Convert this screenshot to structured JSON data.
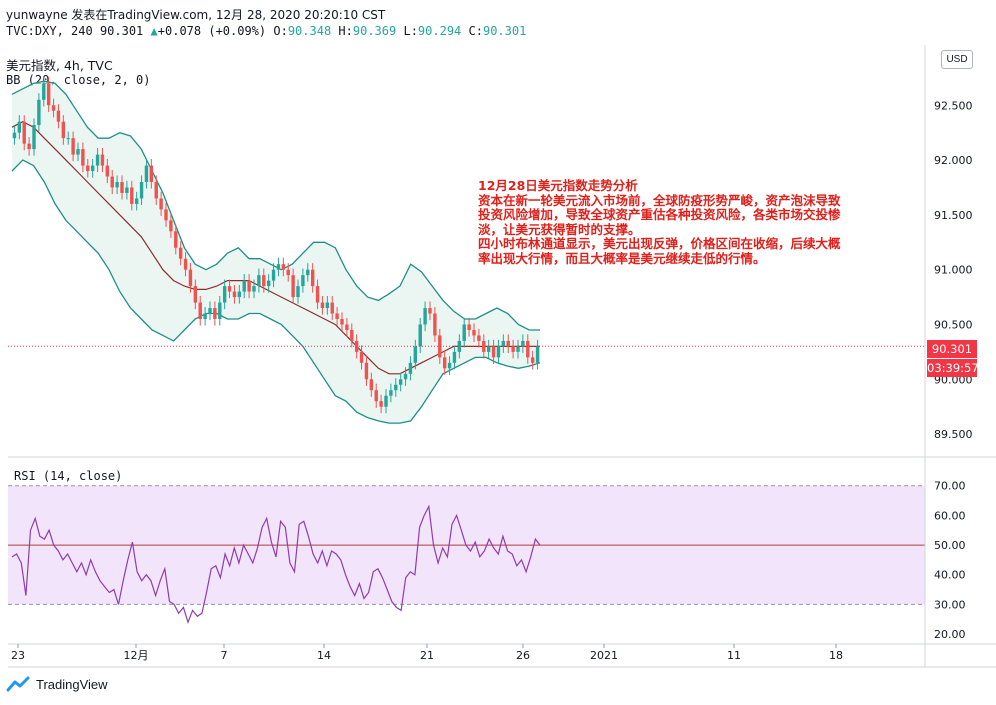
{
  "header": {
    "line1": "yunwayne 发表在TradingView.com, 12月 28, 2020 20:20:10 CST",
    "symbol": "TVC:DXY, 240",
    "last": "90.301",
    "arrow": "▲",
    "change": "+0.078 (+0.09%)",
    "o_label": "O:",
    "o": "90.348",
    "h_label": "H:",
    "h": "90.369",
    "l_label": "L:",
    "l": "90.294",
    "c_label": "C:",
    "c": "90.301"
  },
  "legend": {
    "instrument": "美元指数, 4h, TVC",
    "bb": "BB (20, close, 2, 0)",
    "rsi": "RSI (14, close)"
  },
  "currency_button": "USD",
  "price_badge": "90.301",
  "countdown_badge": "03:39:57",
  "note": {
    "title": "12月28日美元指数走势分析",
    "para1": "资本在新一轮美元流入市场前，全球防疫形势严峻，资产泡沫导致投资风险增加，导致全球资产重估各种投资风险，各类市场交投惨淡，让美元获得暂时的支撑。",
    "para2": "四小时布林通道显示，美元出现反弹，价格区间在收缩，后续大概率出现大行情，而且大概率是美元继续走低的行情。"
  },
  "brand": "TradingView",
  "colors": {
    "up": "#26a69a",
    "down": "#ef5350",
    "band": "#1f8f86",
    "basis": "#8b2d2d",
    "band_fill": "#e3f2ee",
    "rsi": "#8e3cb0",
    "rsi_band": "#f2e4fb",
    "note": "#e0201b",
    "badge": "#f23645"
  },
  "chart_data": [
    {
      "type": "candlestick",
      "title": "美元指数, 4h, TVC",
      "indicator": "BB (20, close, 2, 0)",
      "y_ticks": [
        89.5,
        90.0,
        90.5,
        91.0,
        91.5,
        92.0,
        92.5
      ],
      "y_tick_labels": [
        "89.500",
        "90.000",
        "90.500",
        "91.000",
        "91.500",
        "92.000",
        "92.500"
      ],
      "ylim": [
        89.3,
        93.05
      ],
      "x_tick_labels": [
        "23",
        "12月",
        "7",
        "14",
        "21",
        "26",
        "2021",
        "11",
        "18"
      ],
      "last_price": 90.301,
      "series": [
        {
          "name": "close",
          "values": [
            92.25,
            92.35,
            92.15,
            92.1,
            92.32,
            92.55,
            92.7,
            92.5,
            92.45,
            92.35,
            92.2,
            92.2,
            92.05,
            92.1,
            91.95,
            91.9,
            91.95,
            92.05,
            91.95,
            91.85,
            91.75,
            91.8,
            91.7,
            91.75,
            91.6,
            91.65,
            91.8,
            91.95,
            91.8,
            91.65,
            91.55,
            91.45,
            91.35,
            91.2,
            91.1,
            91.0,
            90.85,
            90.7,
            90.55,
            90.6,
            90.65,
            90.55,
            90.7,
            90.85,
            90.8,
            90.75,
            90.8,
            90.9,
            90.8,
            90.85,
            90.95,
            90.85,
            90.9,
            91.0,
            91.05,
            91.0,
            90.95,
            90.75,
            90.85,
            90.95,
            91.0,
            90.85,
            90.7,
            90.65,
            90.7,
            90.6,
            90.55,
            90.5,
            90.45,
            90.35,
            90.25,
            90.15,
            90.0,
            89.9,
            89.8,
            89.75,
            89.85,
            89.9,
            89.95,
            90.0,
            90.05,
            90.15,
            90.3,
            90.5,
            90.65,
            90.6,
            90.4,
            90.2,
            90.1,
            90.15,
            90.25,
            90.35,
            90.5,
            90.45,
            90.4,
            90.35,
            90.25,
            90.3,
            90.2,
            90.3,
            90.35,
            90.3,
            90.25,
            90.3,
            90.35,
            90.2,
            90.15,
            90.3
          ]
        },
        {
          "name": "BB upper",
          "values": [
            92.6,
            92.65,
            92.7,
            92.72,
            92.7,
            92.6,
            92.45,
            92.3,
            92.2,
            92.2,
            92.25,
            92.22,
            92.1,
            91.9,
            91.7,
            91.45,
            91.2,
            91.05,
            91.0,
            91.05,
            91.15,
            91.2,
            91.1,
            91.1,
            91.05,
            91.0,
            91.05,
            91.15,
            91.25,
            91.25,
            91.2,
            91.0,
            90.85,
            90.75,
            90.72,
            90.78,
            90.85,
            91.05,
            90.98,
            90.85,
            90.72,
            90.62,
            90.55,
            90.55,
            90.6,
            90.65,
            90.6,
            90.5,
            90.45,
            90.45
          ]
        },
        {
          "name": "BB basis",
          "values": [
            92.3,
            92.35,
            92.3,
            92.2,
            92.1,
            92.0,
            91.9,
            91.8,
            91.7,
            91.6,
            91.5,
            91.4,
            91.3,
            91.15,
            91.0,
            90.9,
            90.85,
            90.82,
            90.82,
            90.85,
            90.9,
            90.9,
            90.9,
            90.85,
            90.8,
            90.75,
            90.7,
            90.65,
            90.6,
            90.55,
            90.5,
            90.4,
            90.3,
            90.2,
            90.1,
            90.05,
            90.05,
            90.1,
            90.15,
            90.2,
            90.25,
            90.3,
            90.3,
            90.3,
            90.3,
            90.3,
            90.3,
            90.3,
            90.3,
            90.3
          ]
        },
        {
          "name": "BB lower",
          "values": [
            91.9,
            92.0,
            91.95,
            91.8,
            91.6,
            91.45,
            91.35,
            91.25,
            91.15,
            91.0,
            90.8,
            90.65,
            90.55,
            90.45,
            90.4,
            90.35,
            90.45,
            90.55,
            90.6,
            90.6,
            90.55,
            90.55,
            90.6,
            90.6,
            90.55,
            90.5,
            90.4,
            90.3,
            90.15,
            90.0,
            89.85,
            89.8,
            89.7,
            89.65,
            89.62,
            89.6,
            89.6,
            89.62,
            89.75,
            89.9,
            90.05,
            90.1,
            90.15,
            90.2,
            90.2,
            90.15,
            90.12,
            90.1,
            90.12,
            90.15
          ]
        }
      ]
    },
    {
      "type": "line",
      "title": "RSI (14, close)",
      "y_ticks": [
        20,
        30,
        40,
        50,
        60,
        70
      ],
      "y_tick_labels": [
        "20.00",
        "30.00",
        "40.00",
        "50.00",
        "60.00",
        "70.00"
      ],
      "ylim": [
        17,
        79
      ],
      "bands": [
        30,
        70
      ],
      "midline": 50,
      "series": [
        {
          "name": "RSI",
          "values": [
            46,
            47,
            44,
            33,
            55,
            59,
            53,
            52,
            55,
            50,
            48,
            45,
            47,
            44,
            41,
            44,
            40,
            45,
            41,
            38,
            36,
            34,
            35,
            30,
            38,
            45,
            51,
            41,
            38,
            40,
            38,
            33,
            38,
            42,
            31,
            30,
            27,
            29,
            24,
            28,
            26,
            27,
            34,
            42,
            43,
            39,
            47,
            43,
            49,
            44,
            50,
            47,
            44,
            49,
            56,
            59,
            51,
            46,
            58,
            56,
            44,
            41,
            57,
            58,
            53,
            47,
            44,
            48,
            43,
            48,
            47,
            45,
            40,
            36,
            33,
            37,
            32,
            34,
            41,
            42,
            39,
            35,
            31,
            29,
            28,
            39,
            41,
            40,
            56,
            60,
            63,
            50,
            44,
            49,
            46,
            57,
            60,
            55,
            50,
            48,
            51,
            46,
            48,
            52,
            49,
            47,
            53,
            48,
            47,
            43,
            45,
            41,
            46,
            52,
            50
          ]
        }
      ]
    }
  ]
}
